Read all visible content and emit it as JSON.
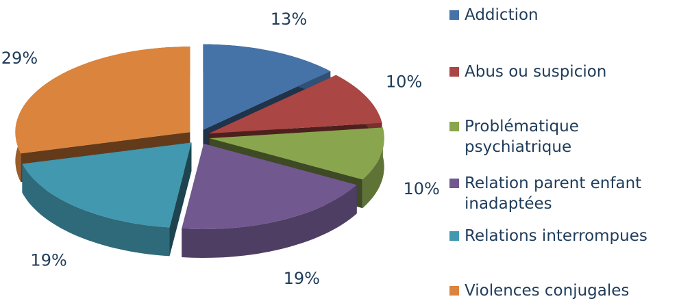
{
  "chart_data": {
    "type": "pie",
    "categories": [
      "Addiction",
      "Abus ou suspicion",
      "Problématique psychiatrique",
      "Relation parent enfant inadaptées",
      "Relations interrompues",
      "Violences conjugales"
    ],
    "values": [
      13,
      10,
      10,
      19,
      19,
      29
    ],
    "value_labels": [
      "13%",
      "10%",
      "10%",
      "19%",
      "19%",
      "29%"
    ],
    "colors": [
      "#4572a7",
      "#aa4643",
      "#89a54e",
      "#71588f",
      "#4198af",
      "#db843d"
    ],
    "legend": "right"
  }
}
